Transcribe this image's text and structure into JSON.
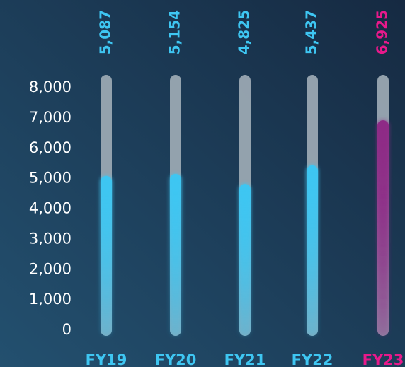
{
  "chart_data": {
    "type": "bar",
    "categories": [
      "FY19",
      "FY20",
      "FY21",
      "FY22",
      "FY23"
    ],
    "values": [
      5087,
      5154,
      4825,
      5437,
      6925
    ],
    "value_labels": [
      "5,087",
      "5,154",
      "4,825",
      "5,437",
      "6,925"
    ],
    "colors": [
      "#3ec6f2",
      "#3ec6f2",
      "#3ec6f2",
      "#3ec6f2",
      "#e8198b"
    ],
    "bar_colors": [
      "#3ec6f2",
      "#3ec6f2",
      "#3ec6f2",
      "#3ec6f2",
      "#8e2a86"
    ],
    "ylim": [
      0,
      8000
    ],
    "yticks": [
      0,
      {
        "value": 1000,
        "label": "1,000"
      },
      {
        "value": 2000,
        "label": "2,000"
      },
      {
        "value": 3000,
        "label": "3,000"
      },
      {
        "value": 4000,
        "label": "4,000"
      },
      {
        "value": 5000,
        "label": "5,000"
      },
      {
        "value": 6000,
        "label": "6,000"
      },
      {
        "value": 7000,
        "label": "7,000"
      },
      {
        "value": 8000,
        "label": "8,000"
      }
    ],
    "grid": false
  }
}
